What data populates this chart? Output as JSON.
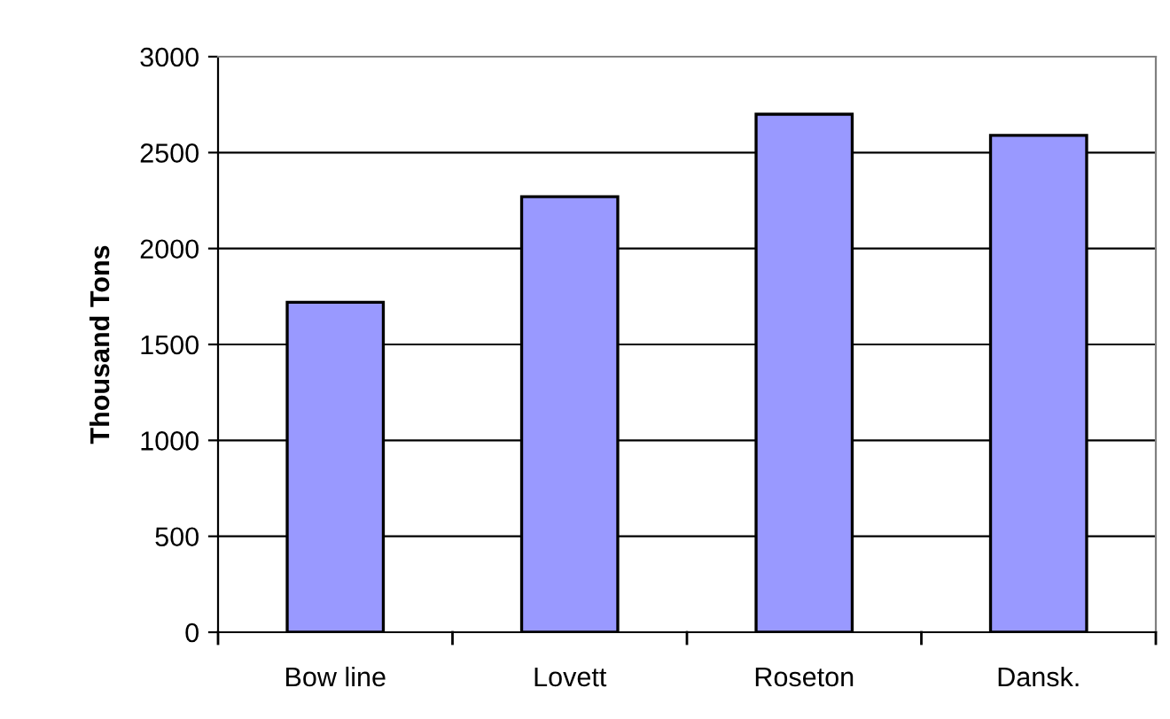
{
  "chart_data": {
    "type": "bar",
    "ylabel": "Thousand Tons",
    "categories": [
      "Bow line",
      "Lovett",
      "Roseton",
      "Dansk."
    ],
    "values": [
      1720,
      2270,
      2700,
      2590
    ],
    "color": "#9999ff",
    "ylim": [
      0,
      3000
    ],
    "yticks": [
      0,
      500,
      1000,
      1500,
      2000,
      2500,
      3000
    ],
    "grid": "y"
  }
}
